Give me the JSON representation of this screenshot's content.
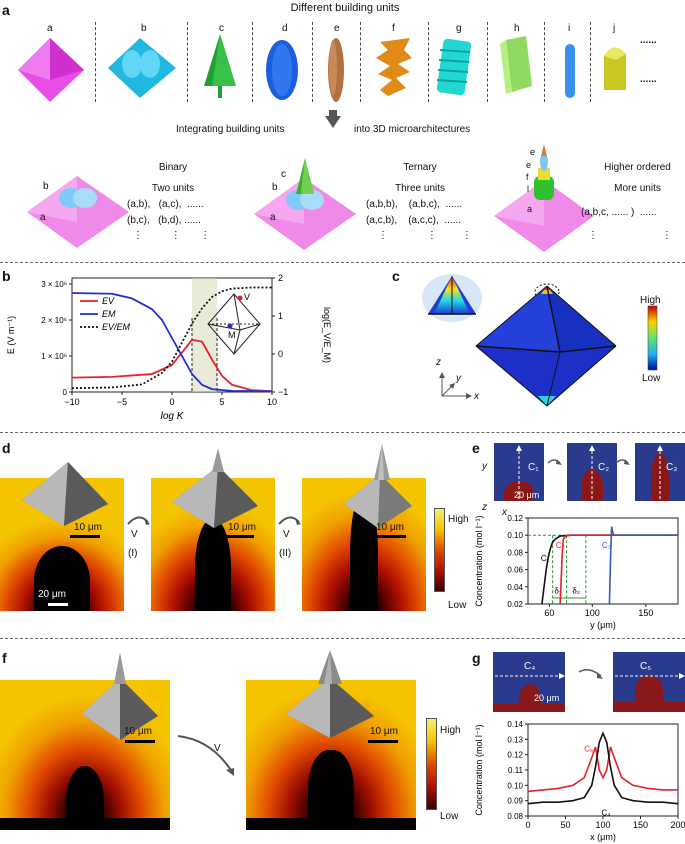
{
  "panel_a": {
    "letter": "a",
    "title": "Different building units",
    "units": [
      "a",
      "b",
      "c",
      "d",
      "e",
      "f",
      "g",
      "h",
      "i",
      "j"
    ],
    "ellipsis": "......",
    "integrate_left": "Integrating building units",
    "integrate_right": "into 3D microarchitectures",
    "binary": {
      "title": "Binary",
      "subtitle": "Two units",
      "row1": "(a,b),   (a,c),  ......",
      "row2": "(b,c),   (b,d), ......",
      "dots": "⋮          ⋮       ⋮",
      "label_top": "b",
      "label_bottom": "a"
    },
    "ternary": {
      "title": "Ternary",
      "subtitle": "Three units",
      "row1": "(a,b,b),    (a,b,c),  ......",
      "row2": "(a,c,b),    (a,c,c),  ......",
      "dots": "⋮              ⋮         ⋮",
      "label_c": "c",
      "label_b": "b",
      "label_a": "a"
    },
    "higher": {
      "title": "Higher ordered",
      "subtitle": "More units",
      "row1": "(a,b,c, ...... )  ......",
      "dots": "⋮                       ⋮",
      "stack_labels": [
        "e",
        "e",
        "f",
        "l",
        "a"
      ]
    }
  },
  "panel_b": {
    "letter": "b",
    "legend": [
      "E_V",
      "E_M",
      "E_V/E_M"
    ],
    "vertex_labels": {
      "v": "V",
      "m": "M"
    },
    "chart_data": {
      "type": "line",
      "xlabel": "log K",
      "ylabel_left": "E (V m⁻¹)",
      "ylabel_right": "log(E_V/E_M)",
      "xlim": [
        -10,
        10
      ],
      "x_ticks": [
        "−10",
        "−5",
        "0",
        "5",
        "10"
      ],
      "y_left_ticks": [
        "0",
        "1 × 10⁶",
        "2 × 10⁶",
        "3 × 10⁶"
      ],
      "y_right_ticks": [
        "−1",
        "0",
        "1",
        "2"
      ],
      "series": [
        {
          "name": "E_V",
          "color": "#e8202a",
          "x": [
            -10,
            -6,
            -2,
            0,
            1,
            2,
            3,
            4,
            5,
            6,
            8,
            10
          ],
          "values": [
            0.4,
            0.42,
            0.5,
            0.75,
            1.1,
            1.45,
            1.4,
            0.9,
            0.45,
            0.2,
            0.05,
            0.02
          ]
        },
        {
          "name": "E_M",
          "color": "#2030d0",
          "x": [
            -10,
            -6,
            -4,
            -2,
            -1,
            0,
            1,
            2,
            3,
            4,
            6,
            10
          ],
          "values": [
            2.75,
            2.73,
            2.6,
            2.3,
            2.0,
            1.5,
            1.0,
            0.5,
            0.2,
            0.08,
            0.03,
            0.02
          ]
        },
        {
          "name": "E_V/E_M",
          "color": "#111111",
          "x": [
            -10,
            -6,
            -3,
            -1,
            0,
            1,
            2,
            3,
            4,
            5,
            6,
            8,
            10
          ],
          "values": [
            -0.9,
            -0.88,
            -0.8,
            -0.5,
            -0.2,
            0.3,
            0.8,
            1.2,
            1.5,
            1.65,
            1.72,
            1.75,
            1.75
          ]
        }
      ]
    }
  },
  "panel_c": {
    "letter": "c",
    "high": "High",
    "low": "Low",
    "axis_z": "z",
    "axis_y": "y",
    "axis_x": "x"
  },
  "panel_d": {
    "letter": "d",
    "scale_10": "10 μm",
    "scale_20": "20 μm",
    "arrow1_label": "V",
    "arrow1_step": "(I)",
    "arrow2_label": "V",
    "arrow2_step": "(II)",
    "high": "High",
    "low": "Low"
  },
  "panel_e": {
    "letter": "e",
    "insets": [
      "C₁",
      "C₂",
      "C₃"
    ],
    "scale": "20 μm",
    "axis_y": "y",
    "axis_z": "z",
    "axis_x": "x",
    "chart_data": {
      "type": "line",
      "xlabel": "y (μm)",
      "ylabel": "Concentration (mol l⁻¹)",
      "xlim": [
        40,
        180
      ],
      "ylim": [
        0.02,
        0.12
      ],
      "x_ticks": [
        "60",
        "100",
        "150"
      ],
      "y_ticks": [
        "0.02",
        "0.04",
        "0.06",
        "0.08",
        "0.10",
        "0.12"
      ],
      "annotations": [
        "δ₁",
        "δ₂"
      ],
      "series": [
        {
          "name": "C₁",
          "color": "#111111",
          "x": [
            53,
            55,
            57,
            59,
            61,
            63,
            66,
            70,
            80,
            100,
            180
          ],
          "values": [
            0.02,
            0.04,
            0.06,
            0.075,
            0.085,
            0.092,
            0.096,
            0.099,
            0.1,
            0.1,
            0.1
          ]
        },
        {
          "name": "C₂",
          "color": "#e8202a",
          "x": [
            70,
            71,
            72,
            73,
            75,
            80,
            90,
            120,
            180
          ],
          "values": [
            0.02,
            0.05,
            0.08,
            0.095,
            0.099,
            0.1,
            0.1,
            0.1,
            0.1
          ]
        },
        {
          "name": "C₃",
          "color": "#3060b0",
          "x": [
            116,
            117,
            118,
            119,
            120,
            125,
            150,
            180
          ],
          "values": [
            0.02,
            0.07,
            0.11,
            0.104,
            0.1,
            0.1,
            0.1,
            0.1
          ]
        }
      ]
    }
  },
  "panel_f": {
    "letter": "f",
    "scale_10a": "10 μm",
    "scale_10b": "10 μm",
    "arrow_label": "V",
    "high": "High",
    "low": "Low"
  },
  "panel_g": {
    "letter": "g",
    "insets": [
      "C₄",
      "C₅"
    ],
    "scale": "20 μm",
    "chart_data": {
      "type": "line",
      "xlabel": "x (μm)",
      "ylabel": "Concentration (mol l⁻¹)",
      "xlim": [
        0,
        200
      ],
      "ylim": [
        0.08,
        0.14
      ],
      "x_ticks": [
        "0",
        "50",
        "100",
        "150",
        "200"
      ],
      "y_ticks": [
        "0.08",
        "0.09",
        "0.10",
        "0.11",
        "0.12",
        "0.13",
        "0.14"
      ],
      "series": [
        {
          "name": "C₅",
          "color": "#e8202a",
          "x": [
            0,
            20,
            40,
            60,
            75,
            85,
            90,
            95,
            100,
            105,
            110,
            115,
            125,
            140,
            160,
            180,
            200
          ],
          "values": [
            0.096,
            0.097,
            0.098,
            0.1,
            0.105,
            0.118,
            0.125,
            0.11,
            0.105,
            0.11,
            0.125,
            0.118,
            0.105,
            0.1,
            0.098,
            0.097,
            0.097
          ]
        },
        {
          "name": "C₄",
          "color": "#111111",
          "x": [
            0,
            20,
            40,
            60,
            75,
            85,
            90,
            95,
            100,
            105,
            110,
            115,
            125,
            140,
            160,
            180,
            200
          ],
          "values": [
            0.088,
            0.089,
            0.089,
            0.09,
            0.092,
            0.1,
            0.112,
            0.128,
            0.134,
            0.128,
            0.112,
            0.1,
            0.092,
            0.09,
            0.089,
            0.089,
            0.088
          ]
        }
      ]
    }
  }
}
